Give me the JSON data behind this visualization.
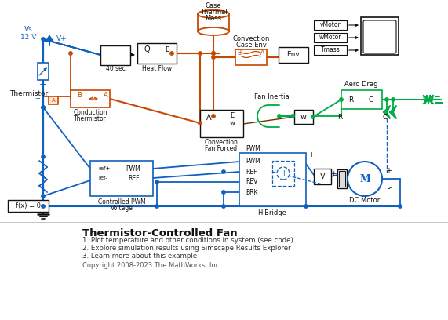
{
  "title": "Thermistor-Controlled Fan",
  "subtitle_lines": [
    "1. Plot temperature and other conditions in system (see code)",
    "2. Explore simulation results using Simscape Results Explorer",
    "3. Learn more about this example"
  ],
  "copyright": "Copyright 2008-2023 The MathWorks, Inc.",
  "bg_color": "#ffffff",
  "blue": "#1060c0",
  "orange": "#c84800",
  "green": "#00aa44",
  "dark": "#111111"
}
